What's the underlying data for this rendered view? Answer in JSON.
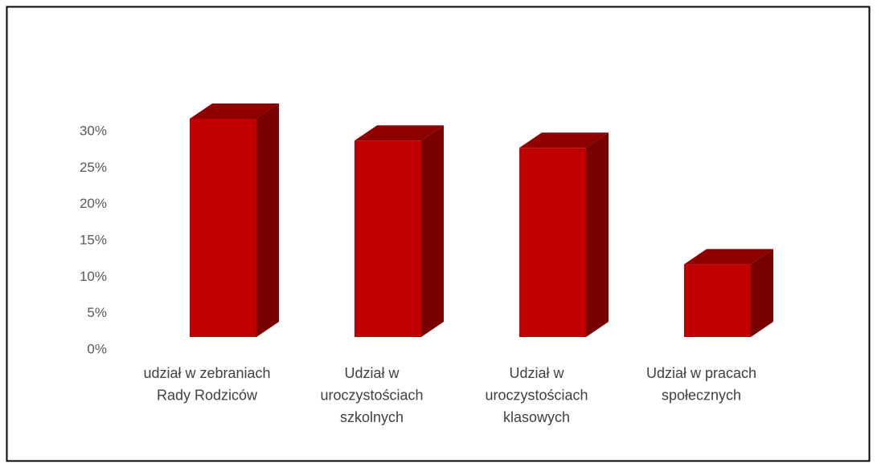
{
  "chart_data": {
    "type": "bar3d",
    "categories": [
      [
        "udział w zebraniach",
        "Rady Rodziców"
      ],
      [
        "Udział w",
        "uroczystościach",
        "szkolnych"
      ],
      [
        "Udział w",
        "uroczystościach",
        "klasowych"
      ],
      [
        "Udział w pracach",
        "społecznych"
      ]
    ],
    "values": [
      30,
      27,
      26,
      10
    ],
    "color": "#c00000",
    "ylim": [
      0,
      30
    ],
    "yticks": [
      {
        "value": 0,
        "label": "0%"
      },
      {
        "value": 5,
        "label": "5%"
      },
      {
        "value": 10,
        "label": "10%"
      },
      {
        "value": 15,
        "label": "15%"
      },
      {
        "value": 20,
        "label": "20%"
      },
      {
        "value": 25,
        "label": "25%"
      },
      {
        "value": 30,
        "label": "30%"
      }
    ],
    "grid": false
  }
}
